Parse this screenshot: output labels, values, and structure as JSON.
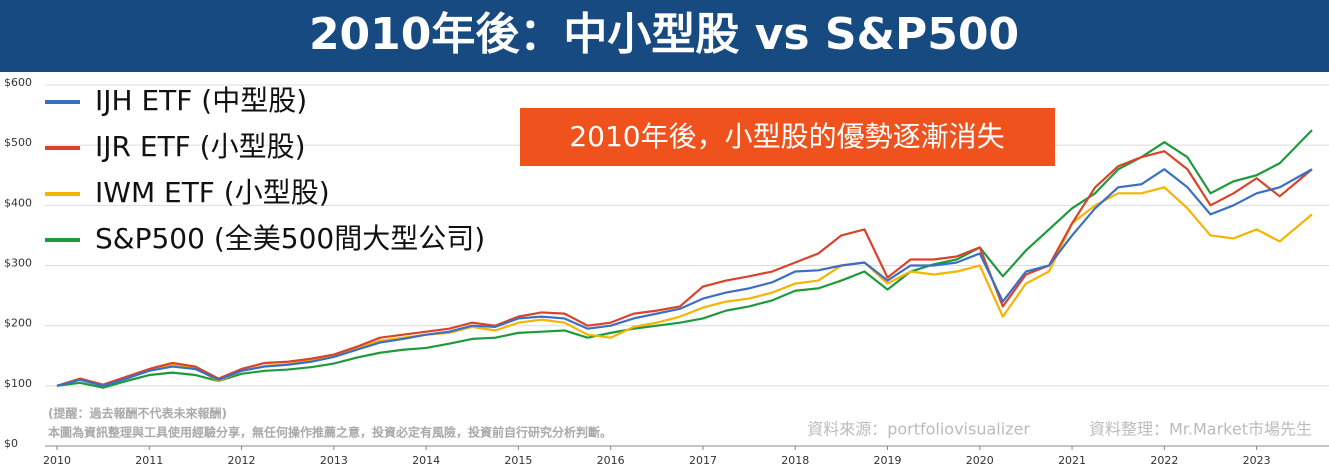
{
  "chart_data": {
    "type": "line",
    "title": "2010年後：中小型股 vs S&P500",
    "annotation": "2010年後，小型股的優勢逐漸消失",
    "notes": [
      "(提醒：過去報酬不代表未來報酬)",
      "本圖為資訊整理與工具使用經驗分享，無任何操作推薦之意，投資必定有風險，投資前自行研究分析判斷。"
    ],
    "source": "資料來源：portfoliovisualizer",
    "credit": "資料整理：Mr.Market市場先生",
    "x": [
      2010,
      2010.25,
      2010.5,
      2010.75,
      2011,
      2011.25,
      2011.5,
      2011.75,
      2012,
      2012.25,
      2012.5,
      2012.75,
      2013,
      2013.25,
      2013.5,
      2013.75,
      2014,
      2014.25,
      2014.5,
      2014.75,
      2015,
      2015.25,
      2015.5,
      2015.75,
      2016,
      2016.25,
      2016.5,
      2016.75,
      2017,
      2017.25,
      2017.5,
      2017.75,
      2018,
      2018.25,
      2018.5,
      2018.75,
      2019,
      2019.25,
      2019.5,
      2019.75,
      2020,
      2020.25,
      2020.5,
      2020.75,
      2021,
      2021.25,
      2021.5,
      2021.75,
      2022,
      2022.25,
      2022.5,
      2022.75,
      2023,
      2023.25,
      2023.6
    ],
    "series": [
      {
        "name": "S&P500 (全美500間大型公司)",
        "color": "#1e9a3c",
        "values": [
          100,
          105,
          97,
          108,
          118,
          122,
          118,
          108,
          120,
          125,
          127,
          131,
          137,
          147,
          155,
          160,
          163,
          170,
          178,
          180,
          188,
          190,
          192,
          180,
          188,
          195,
          200,
          205,
          212,
          225,
          232,
          242,
          258,
          262,
          275,
          290,
          260,
          290,
          302,
          310,
          330,
          282,
          325,
          360,
          395,
          420,
          460,
          480,
          505,
          480,
          420,
          440,
          450,
          470,
          525
        ]
      },
      {
        "name": "IWM ETF (小型股)",
        "color": "#f4b400",
        "values": [
          100,
          112,
          100,
          113,
          126,
          135,
          130,
          108,
          125,
          133,
          136,
          142,
          150,
          162,
          175,
          180,
          185,
          188,
          198,
          192,
          205,
          210,
          205,
          185,
          180,
          198,
          205,
          215,
          230,
          240,
          245,
          255,
          270,
          275,
          300,
          305,
          270,
          290,
          285,
          290,
          300,
          215,
          270,
          290,
          370,
          400,
          420,
          420,
          430,
          395,
          350,
          345,
          360,
          340,
          385
        ]
      },
      {
        "name": "IJR ETF (小型股)",
        "color": "#d9432b",
        "values": [
          100,
          112,
          102,
          115,
          128,
          138,
          132,
          112,
          128,
          138,
          140,
          145,
          152,
          165,
          180,
          185,
          190,
          195,
          205,
          200,
          215,
          222,
          220,
          200,
          205,
          220,
          225,
          232,
          265,
          275,
          282,
          290,
          305,
          320,
          350,
          360,
          280,
          310,
          310,
          315,
          330,
          232,
          285,
          300,
          370,
          430,
          465,
          480,
          490,
          460,
          400,
          420,
          445,
          415,
          460
        ]
      },
      {
        "name": "IJH ETF (中型股)",
        "color": "#3b6fc4",
        "values": [
          100,
          110,
          100,
          112,
          125,
          132,
          128,
          110,
          125,
          132,
          135,
          140,
          148,
          160,
          172,
          178,
          185,
          190,
          200,
          198,
          212,
          215,
          212,
          195,
          200,
          212,
          220,
          228,
          245,
          255,
          262,
          272,
          290,
          292,
          300,
          305,
          275,
          300,
          300,
          305,
          320,
          240,
          290,
          300,
          350,
          395,
          430,
          435,
          460,
          430,
          385,
          400,
          420,
          430,
          460
        ]
      }
    ],
    "legend_order": [
      3,
      2,
      1,
      0
    ],
    "xlim": [
      2010,
      2023.6
    ],
    "xticks": [
      2010,
      2011,
      2012,
      2013,
      2014,
      2015,
      2016,
      2017,
      2018,
      2019,
      2020,
      2021,
      2022,
      2023
    ],
    "ylim": [
      0,
      600
    ],
    "yticks": [
      {
        "value": 0,
        "label": "$0"
      },
      {
        "value": 100,
        "label": "$100"
      },
      {
        "value": 200,
        "label": "$200"
      },
      {
        "value": 300,
        "label": "$300"
      },
      {
        "value": 400,
        "label": "$400"
      },
      {
        "value": 500,
        "label": "$500"
      },
      {
        "value": 600,
        "label": "$600"
      }
    ],
    "grid": true
  }
}
